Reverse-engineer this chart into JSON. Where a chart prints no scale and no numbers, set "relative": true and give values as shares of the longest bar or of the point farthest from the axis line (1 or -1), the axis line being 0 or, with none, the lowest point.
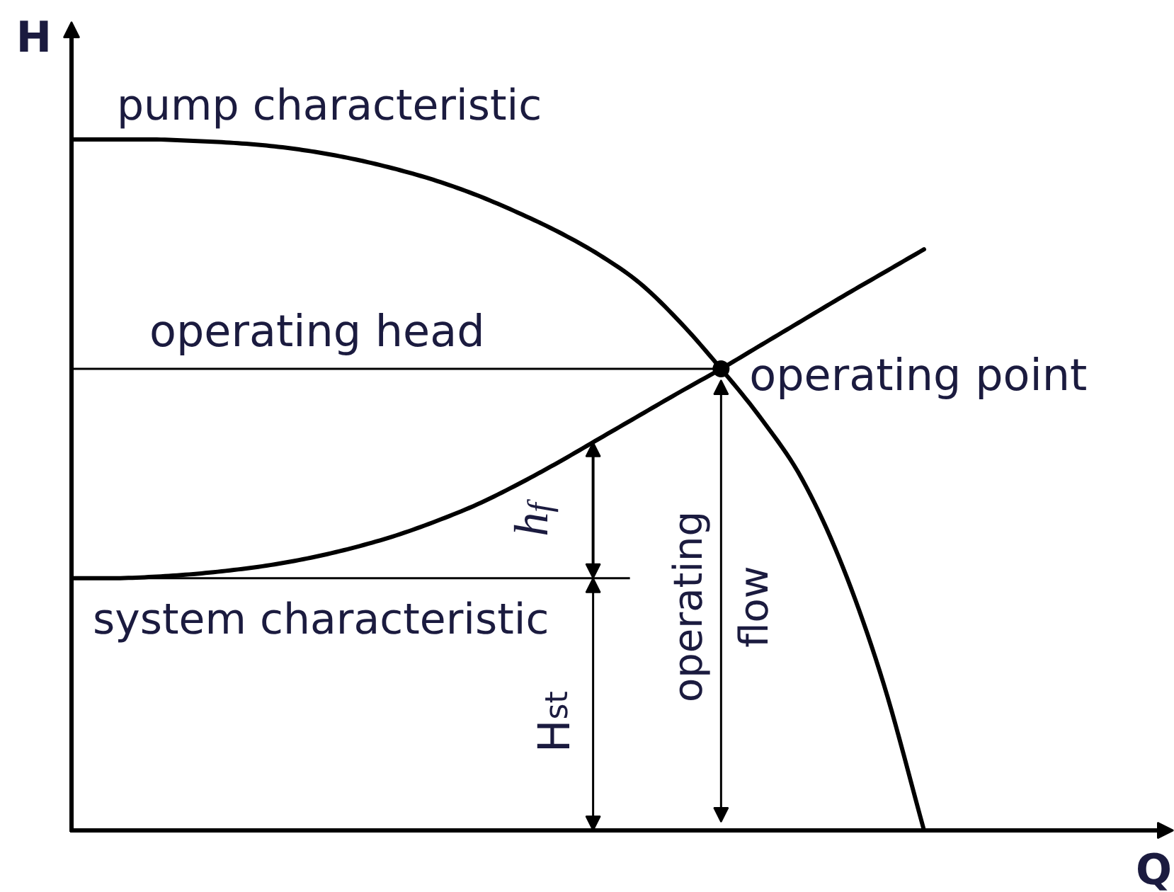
{
  "chart_data": {
    "type": "line",
    "relative": true,
    "xlabel": "Q",
    "ylabel": "H",
    "categories": [
      null,
      null,
      null,
      null,
      null,
      null,
      null,
      null,
      null,
      null,
      null,
      null,
      null,
      null,
      null,
      null,
      null,
      null,
      null,
      null,
      null,
      null
    ],
    "series": [
      {
        "name": "pump characteristic",
        "color": "#000000",
        "values": [
          1.0,
          1.0,
          1.0,
          0.998,
          0.995,
          0.99,
          0.982,
          0.971,
          0.957,
          0.94,
          0.919,
          0.894,
          0.866,
          0.833,
          0.792,
          0.735,
          0.668,
          0.595,
          0.508,
          0.381,
          0.213,
          0
        ]
      },
      {
        "name": "system characteristic",
        "color": "#000000",
        "values": [
          0.365,
          0.365,
          0.367,
          0.371,
          0.377,
          0.385,
          0.396,
          0.41,
          0.427,
          0.448,
          0.472,
          0.501,
          0.533,
          0.567,
          0.601,
          0.635,
          0.668,
          0.703,
          0.738,
          0.773,
          0.807,
          0.841
        ]
      }
    ],
    "ref_lines": [
      {
        "axis": "y",
        "value": 0.668,
        "label": "operating head",
        "color": "#000000"
      },
      {
        "axis": "y",
        "value": 0.365,
        "color": "#000000"
      }
    ],
    "annotations": [
      "operating point",
      "h$_{f}$",
      "H$_{st}$",
      "operating flow"
    ]
  }
}
